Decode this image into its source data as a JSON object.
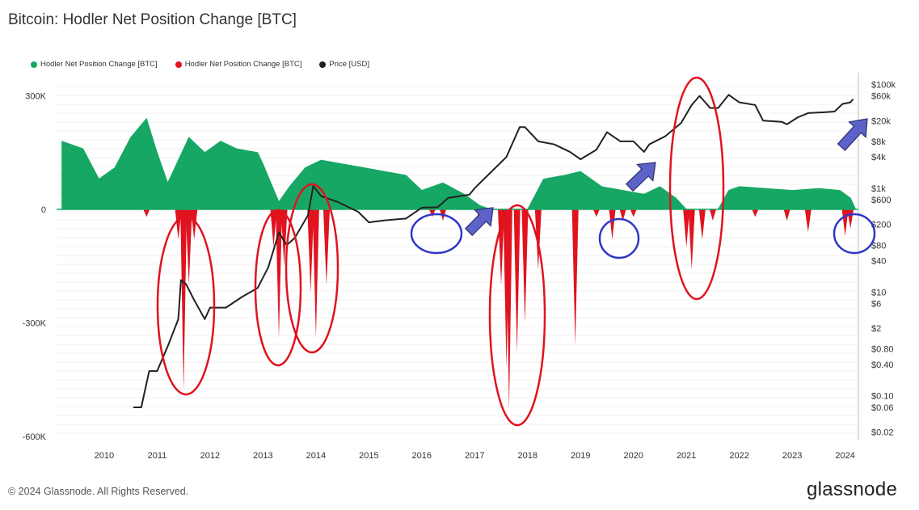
{
  "header": {
    "title": "Bitcoin: Hodler Net Position Change [BTC]"
  },
  "legend": [
    {
      "label": "Hodler Net Position Change [BTC]",
      "color": "#17a765"
    },
    {
      "label": "Hodler Net Position Change [BTC]",
      "color": "#e0131f"
    },
    {
      "label": "Price [USD]",
      "color": "#222222"
    }
  ],
  "footer": {
    "copyright": "© 2024 Glassnode. All Rights Reserved.",
    "brand": "glassnode"
  },
  "chart_data": {
    "type": "area",
    "x_labels": [
      "2010",
      "2011",
      "2012",
      "2013",
      "2014",
      "2015",
      "2016",
      "2017",
      "2018",
      "2019",
      "2020",
      "2021",
      "2022",
      "2023",
      "2024"
    ],
    "y_left_ticks": [
      "300K",
      "0",
      "-300K",
      "-600K"
    ],
    "y_left_values": [
      300000,
      0,
      -300000,
      -600000
    ],
    "y_left_range": [
      -600000,
      350000
    ],
    "y_right_ticks": [
      "$100k",
      "$60k",
      "$20k",
      "$8k",
      "$4k",
      "$1k",
      "$600",
      "$200",
      "$80",
      "$40",
      "$10",
      "$6",
      "$2",
      "$0.80",
      "$0.40",
      "$0.10",
      "$0.06",
      "$0.02"
    ],
    "y_right_values": [
      100000,
      60000,
      20000,
      8000,
      4000,
      1000,
      600,
      200,
      80,
      40,
      10,
      6,
      2,
      0.8,
      0.4,
      0.1,
      0.06,
      0.02
    ],
    "y_right_scale": "log",
    "grid": true,
    "legend_position": "top-left",
    "series": [
      {
        "name": "Hodler Net Position Change [BTC]",
        "color": "#17a765",
        "sign": "positive",
        "points": [
          [
            2009.2,
            180000
          ],
          [
            2009.6,
            160000
          ],
          [
            2009.9,
            80000
          ],
          [
            2010.2,
            110000
          ],
          [
            2010.5,
            190000
          ],
          [
            2010.8,
            240000
          ],
          [
            2011.0,
            150000
          ],
          [
            2011.2,
            70000
          ],
          [
            2011.6,
            190000
          ],
          [
            2011.9,
            150000
          ],
          [
            2012.2,
            180000
          ],
          [
            2012.5,
            160000
          ],
          [
            2012.9,
            150000
          ],
          [
            2013.0,
            120000
          ],
          [
            2013.3,
            20000
          ],
          [
            2013.5,
            60000
          ],
          [
            2013.8,
            110000
          ],
          [
            2014.1,
            130000
          ],
          [
            2014.5,
            120000
          ],
          [
            2014.9,
            110000
          ],
          [
            2015.3,
            100000
          ],
          [
            2015.7,
            90000
          ],
          [
            2016.0,
            50000
          ],
          [
            2016.4,
            70000
          ],
          [
            2016.8,
            40000
          ],
          [
            2017.1,
            10000
          ],
          [
            2017.3,
            0
          ],
          [
            2018.0,
            0
          ],
          [
            2018.3,
            80000
          ],
          [
            2018.7,
            90000
          ],
          [
            2019.0,
            100000
          ],
          [
            2019.4,
            60000
          ],
          [
            2019.8,
            50000
          ],
          [
            2020.2,
            40000
          ],
          [
            2020.5,
            60000
          ],
          [
            2020.8,
            30000
          ],
          [
            2021.0,
            0
          ],
          [
            2021.6,
            0
          ],
          [
            2021.8,
            50000
          ],
          [
            2022.0,
            60000
          ],
          [
            2022.5,
            55000
          ],
          [
            2023.0,
            50000
          ],
          [
            2023.5,
            55000
          ],
          [
            2023.9,
            50000
          ],
          [
            2024.1,
            30000
          ],
          [
            2024.2,
            0
          ]
        ]
      },
      {
        "name": "Hodler Net Position Change [BTC]",
        "color": "#e0131f",
        "sign": "negative",
        "points": [
          [
            2010.8,
            -20000
          ],
          [
            2011.4,
            -80000
          ],
          [
            2011.5,
            -480000
          ],
          [
            2011.6,
            -200000
          ],
          [
            2011.7,
            -80000
          ],
          [
            2013.2,
            -100000
          ],
          [
            2013.3,
            -340000
          ],
          [
            2013.4,
            -150000
          ],
          [
            2013.9,
            -220000
          ],
          [
            2014.0,
            -340000
          ],
          [
            2014.2,
            -200000
          ],
          [
            2016.2,
            -20000
          ],
          [
            2016.4,
            -30000
          ],
          [
            2017.1,
            -40000
          ],
          [
            2017.5,
            -200000
          ],
          [
            2017.6,
            -420000
          ],
          [
            2017.65,
            -530000
          ],
          [
            2017.8,
            -380000
          ],
          [
            2017.95,
            -300000
          ],
          [
            2018.2,
            -160000
          ],
          [
            2018.9,
            -360000
          ],
          [
            2019.3,
            -20000
          ],
          [
            2019.6,
            -80000
          ],
          [
            2019.8,
            -30000
          ],
          [
            2020.0,
            -20000
          ],
          [
            2021.0,
            -100000
          ],
          [
            2021.1,
            -160000
          ],
          [
            2021.3,
            -80000
          ],
          [
            2021.5,
            -30000
          ],
          [
            2022.3,
            -20000
          ],
          [
            2022.9,
            -30000
          ],
          [
            2023.3,
            -60000
          ],
          [
            2024.0,
            -70000
          ],
          [
            2024.1,
            -50000
          ]
        ]
      },
      {
        "name": "Price [USD]",
        "color": "#222222",
        "axis": "right",
        "points": [
          [
            2010.55,
            0.06
          ],
          [
            2010.7,
            0.06
          ],
          [
            2010.85,
            0.3
          ],
          [
            2011.0,
            0.3
          ],
          [
            2011.2,
            0.9
          ],
          [
            2011.4,
            3
          ],
          [
            2011.45,
            17
          ],
          [
            2011.55,
            14
          ],
          [
            2011.7,
            7
          ],
          [
            2011.9,
            3
          ],
          [
            2012.0,
            5
          ],
          [
            2012.3,
            5
          ],
          [
            2012.6,
            8
          ],
          [
            2012.9,
            12
          ],
          [
            2013.1,
            30
          ],
          [
            2013.3,
            140
          ],
          [
            2013.45,
            80
          ],
          [
            2013.6,
            110
          ],
          [
            2013.85,
            300
          ],
          [
            2013.95,
            1100
          ],
          [
            2014.1,
            700
          ],
          [
            2014.4,
            550
          ],
          [
            2014.8,
            350
          ],
          [
            2015.0,
            220
          ],
          [
            2015.3,
            240
          ],
          [
            2015.7,
            260
          ],
          [
            2016.0,
            420
          ],
          [
            2016.3,
            430
          ],
          [
            2016.5,
            650
          ],
          [
            2016.9,
            750
          ],
          [
            2017.0,
            1000
          ],
          [
            2017.3,
            2000
          ],
          [
            2017.6,
            4000
          ],
          [
            2017.85,
            15000
          ],
          [
            2017.95,
            15000
          ],
          [
            2018.2,
            8000
          ],
          [
            2018.5,
            7000
          ],
          [
            2018.8,
            5000
          ],
          [
            2019.0,
            3600
          ],
          [
            2019.3,
            5500
          ],
          [
            2019.5,
            12000
          ],
          [
            2019.75,
            8000
          ],
          [
            2020.0,
            8000
          ],
          [
            2020.2,
            5000
          ],
          [
            2020.3,
            7000
          ],
          [
            2020.6,
            10000
          ],
          [
            2020.9,
            18000
          ],
          [
            2021.1,
            40000
          ],
          [
            2021.25,
            60000
          ],
          [
            2021.45,
            35000
          ],
          [
            2021.6,
            35000
          ],
          [
            2021.8,
            63000
          ],
          [
            2022.0,
            45000
          ],
          [
            2022.3,
            40000
          ],
          [
            2022.45,
            20000
          ],
          [
            2022.8,
            19000
          ],
          [
            2022.9,
            17000
          ],
          [
            2023.1,
            23000
          ],
          [
            2023.3,
            28000
          ],
          [
            2023.6,
            29000
          ],
          [
            2023.8,
            30000
          ],
          [
            2023.95,
            42000
          ],
          [
            2024.1,
            45000
          ],
          [
            2024.15,
            52000
          ]
        ]
      }
    ]
  }
}
